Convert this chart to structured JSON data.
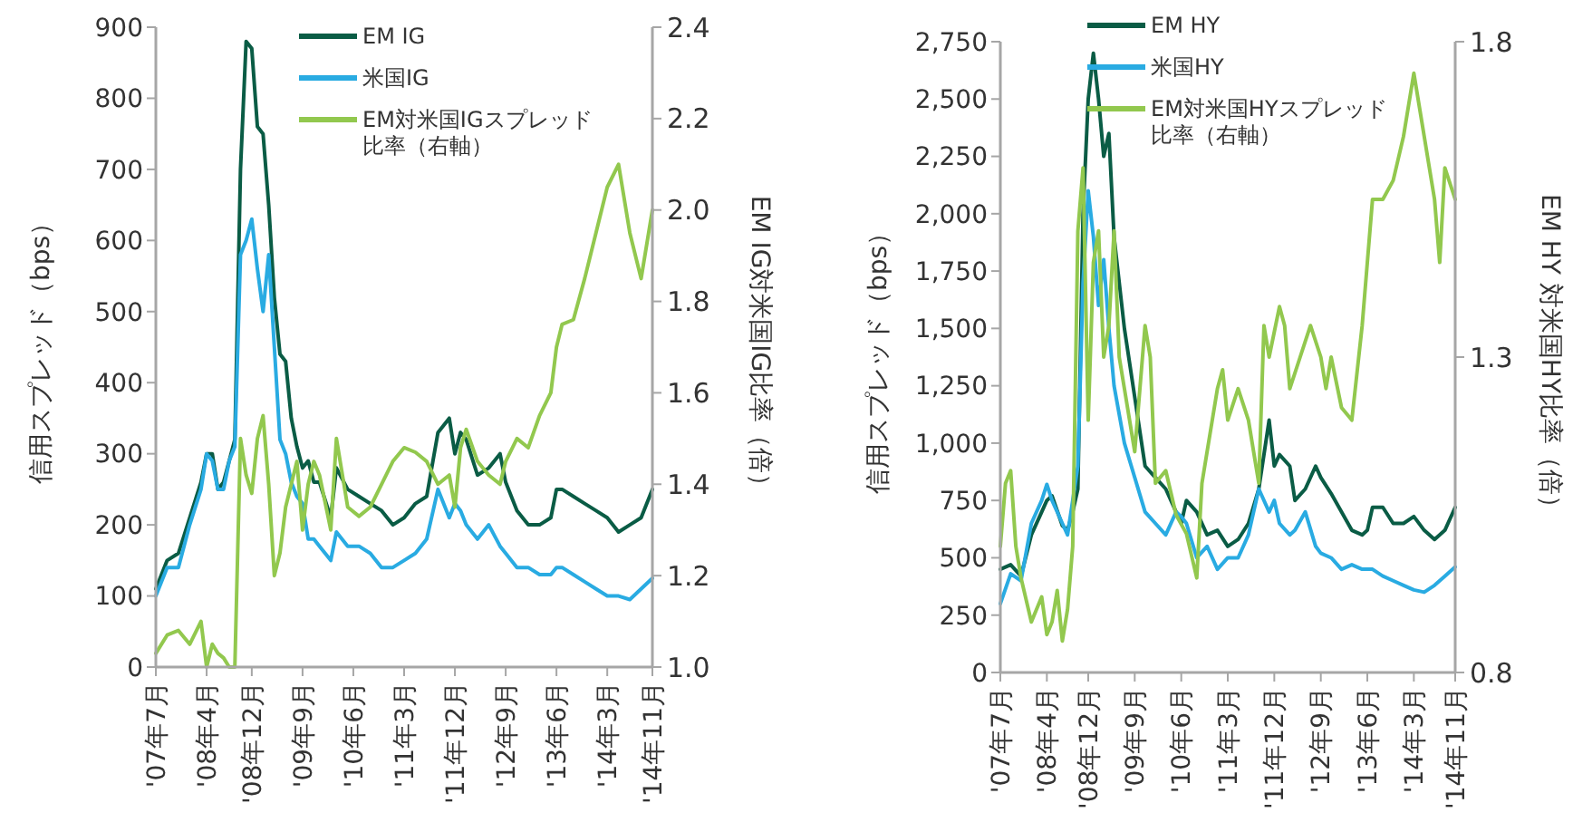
{
  "chart_data": [
    {
      "type": "line",
      "xlim": [
        "2007-07",
        "2014-11"
      ],
      "xticks": [
        {
          "value": "2007-07",
          "label": "'07年7月"
        },
        {
          "value": "2008-04",
          "label": "'08年4月"
        },
        {
          "value": "2008-12",
          "label": "'08年12月"
        },
        {
          "value": "2009-09",
          "label": "'09年9月"
        },
        {
          "value": "2010-06",
          "label": "'10年6月"
        },
        {
          "value": "2011-03",
          "label": "'11年3月"
        },
        {
          "value": "2011-12",
          "label": "'11年12月"
        },
        {
          "value": "2012-09",
          "label": "'12年9月"
        },
        {
          "value": "2013-06",
          "label": "'13年6月"
        },
        {
          "value": "2014-03",
          "label": "'14年3月"
        },
        {
          "value": "2014-11",
          "label": "'14年11月"
        }
      ],
      "x": [
        "2007-07",
        "2007-09",
        "2007-11",
        "2008-01",
        "2008-03",
        "2008-04",
        "2008-05",
        "2008-06",
        "2008-07",
        "2008-08",
        "2008-09",
        "2008-10",
        "2008-11",
        "2008-12",
        "2009-01",
        "2009-02",
        "2009-03",
        "2009-04",
        "2009-05",
        "2009-06",
        "2009-07",
        "2009-08",
        "2009-09",
        "2009-10",
        "2009-11",
        "2009-12",
        "2010-02",
        "2010-03",
        "2010-05",
        "2010-07",
        "2010-09",
        "2010-11",
        "2011-01",
        "2011-03",
        "2011-05",
        "2011-07",
        "2011-09",
        "2011-11",
        "2011-12",
        "2012-01",
        "2012-02",
        "2012-04",
        "2012-06",
        "2012-08",
        "2012-09",
        "2012-11",
        "2013-01",
        "2013-03",
        "2013-05",
        "2013-06",
        "2013-07",
        "2013-09",
        "2013-11",
        "2014-01",
        "2014-03",
        "2014-05",
        "2014-07",
        "2014-09",
        "2014-11"
      ],
      "ylabel": "信用スプレッド（bps）",
      "y2label": "EM IG対米国IG比率（倍）",
      "ylim": [
        0,
        900
      ],
      "yticks": [
        0,
        100,
        200,
        300,
        400,
        500,
        600,
        700,
        800,
        900
      ],
      "y2lim": [
        1,
        2.4
      ],
      "y2ticks": [
        {
          "value": 1,
          "label": "1.0"
        },
        1.2,
        1.4,
        1.6,
        1.8,
        {
          "value": 2,
          "label": "2.0"
        },
        2.2,
        2.4
      ],
      "legend": "top",
      "grid": false,
      "series": [
        {
          "name": "EM IG",
          "color": "#0a5c45",
          "values": [
            110,
            150,
            160,
            210,
            260,
            300,
            300,
            250,
            260,
            290,
            320,
            700,
            880,
            870,
            760,
            750,
            650,
            520,
            440,
            430,
            350,
            310,
            280,
            290,
            260,
            260,
            210,
            280,
            250,
            240,
            230,
            220,
            200,
            210,
            230,
            240,
            330,
            350,
            300,
            330,
            320,
            270,
            280,
            300,
            260,
            220,
            200,
            200,
            210,
            250,
            250,
            240,
            230,
            220,
            210,
            190,
            200,
            210,
            250
          ]
        },
        {
          "name": "米国IG",
          "color": "#29abe2",
          "values": [
            100,
            140,
            140,
            200,
            250,
            300,
            290,
            250,
            250,
            290,
            310,
            580,
            600,
            630,
            560,
            500,
            580,
            450,
            320,
            300,
            260,
            240,
            230,
            180,
            180,
            170,
            150,
            190,
            170,
            170,
            160,
            140,
            140,
            150,
            160,
            180,
            250,
            210,
            230,
            220,
            200,
            180,
            200,
            170,
            160,
            140,
            140,
            130,
            130,
            140,
            140,
            130,
            120,
            110,
            100,
            100,
            95,
            110,
            125
          ]
        },
        {
          "name": "EM対米国IGスプレッド比率（右軸）",
          "color": "#92c84e",
          "axis": "y2",
          "values": [
            1.03,
            1.07,
            1.08,
            1.05,
            1.1,
            1.0,
            1.05,
            1.03,
            1.02,
            1.0,
            1.0,
            1.5,
            1.42,
            1.38,
            1.5,
            1.55,
            1.4,
            1.2,
            1.25,
            1.35,
            1.4,
            1.45,
            1.3,
            1.4,
            1.45,
            1.42,
            1.3,
            1.5,
            1.35,
            1.33,
            1.35,
            1.4,
            1.45,
            1.48,
            1.47,
            1.45,
            1.4,
            1.42,
            1.35,
            1.48,
            1.52,
            1.45,
            1.42,
            1.4,
            1.45,
            1.5,
            1.48,
            1.55,
            1.6,
            1.7,
            1.75,
            1.76,
            1.85,
            1.95,
            2.05,
            2.1,
            1.95,
            1.85,
            2.0
          ]
        }
      ]
    },
    {
      "type": "line",
      "xlim": [
        "2007-07",
        "2014-11"
      ],
      "xticks": [
        {
          "value": "2007-07",
          "label": "'07年7月"
        },
        {
          "value": "2008-04",
          "label": "'08年4月"
        },
        {
          "value": "2008-12",
          "label": "'08年12月"
        },
        {
          "value": "2009-09",
          "label": "'09年9月"
        },
        {
          "value": "2010-06",
          "label": "'10年6月"
        },
        {
          "value": "2011-03",
          "label": "'11年3月"
        },
        {
          "value": "2011-12",
          "label": "'11年12月"
        },
        {
          "value": "2012-09",
          "label": "'12年9月"
        },
        {
          "value": "2013-06",
          "label": "'13年6月"
        },
        {
          "value": "2014-03",
          "label": "'14年3月"
        },
        {
          "value": "2014-11",
          "label": "'14年11月"
        }
      ],
      "x": [
        "2007-07",
        "2007-09",
        "2007-11",
        "2008-01",
        "2008-03",
        "2008-04",
        "2008-05",
        "2008-07",
        "2008-08",
        "2008-09",
        "2008-10",
        "2008-11",
        "2008-12",
        "2009-01",
        "2009-02",
        "2009-03",
        "2009-04",
        "2009-05",
        "2009-07",
        "2009-09",
        "2009-11",
        "2010-01",
        "2010-03",
        "2010-05",
        "2010-06",
        "2010-07",
        "2010-09",
        "2010-11",
        "2011-01",
        "2011-03",
        "2011-05",
        "2011-07",
        "2011-09",
        "2011-11",
        "2011-12",
        "2012-01",
        "2012-03",
        "2012-04",
        "2012-06",
        "2012-08",
        "2012-09",
        "2012-11",
        "2013-01",
        "2013-03",
        "2013-05",
        "2013-06",
        "2013-07",
        "2013-09",
        "2013-11",
        "2014-01",
        "2014-03",
        "2014-05",
        "2014-07",
        "2014-09",
        "2014-11"
      ],
      "ylabel": "信用スプレッド（bps）",
      "y2label": "EM HY 対米国HY比率（倍）",
      "ylim": [
        0,
        2750
      ],
      "yticks": [
        0,
        250,
        500,
        750,
        {
          "value": 1000,
          "label": "1,000"
        },
        {
          "value": 1250,
          "label": "1,250"
        },
        {
          "value": 1500,
          "label": "1,500"
        },
        {
          "value": 1750,
          "label": "1,750"
        },
        {
          "value": 2000,
          "label": "2,000"
        },
        {
          "value": 2250,
          "label": "2,250"
        },
        {
          "value": 2500,
          "label": "2,500"
        },
        {
          "value": 2750,
          "label": "2,750"
        }
      ],
      "y2lim": [
        0.8,
        1.8
      ],
      "y2ticks": [
        0.8,
        1.3,
        1.8
      ],
      "legend": "top",
      "grid": false,
      "series": [
        {
          "name": "EM HY",
          "color": "#0a5c45",
          "values": [
            450,
            470,
            420,
            600,
            700,
            750,
            770,
            640,
            620,
            700,
            800,
            2000,
            2500,
            2700,
            2500,
            2250,
            2350,
            1900,
            1500,
            1200,
            900,
            850,
            800,
            700,
            650,
            750,
            700,
            600,
            620,
            550,
            580,
            650,
            800,
            1100,
            900,
            950,
            900,
            750,
            800,
            900,
            850,
            780,
            700,
            620,
            600,
            620,
            720,
            720,
            650,
            650,
            680,
            620,
            580,
            620,
            720
          ]
        },
        {
          "name": "米国HY",
          "color": "#29abe2",
          "values": [
            300,
            430,
            400,
            650,
            750,
            820,
            750,
            650,
            600,
            750,
            900,
            1700,
            2100,
            1900,
            1600,
            1800,
            1500,
            1250,
            1000,
            850,
            700,
            650,
            600,
            700,
            680,
            650,
            500,
            550,
            450,
            500,
            500,
            600,
            800,
            700,
            750,
            650,
            600,
            620,
            700,
            550,
            520,
            500,
            450,
            470,
            450,
            450,
            450,
            420,
            400,
            380,
            360,
            350,
            380,
            420,
            460
          ]
        },
        {
          "name": "EM対米国HYスプレッド比率（右軸）",
          "color": "#92c84e",
          "axis": "y2",
          "x": [
            "2007-07",
            "2007-08",
            "2007-09",
            "2007-10",
            "2007-11",
            "2008-01",
            "2008-03",
            "2008-04",
            "2008-05",
            "2008-06",
            "2008-07",
            "2008-08",
            "2008-09",
            "2008-10",
            "2008-11",
            "2008-12",
            "2009-01",
            "2009-02",
            "2009-03",
            "2009-04",
            "2009-05",
            "2009-06",
            "2009-07",
            "2009-09",
            "2009-11",
            "2009-12",
            "2010-01",
            "2010-03",
            "2010-05",
            "2010-07",
            "2010-09",
            "2010-10",
            "2010-11",
            "2011-01",
            "2011-02",
            "2011-03",
            "2011-05",
            "2011-07",
            "2011-09",
            "2011-10",
            "2011-11",
            "2012-01",
            "2012-02",
            "2012-03",
            "2012-05",
            "2012-07",
            "2012-09",
            "2012-10",
            "2012-11",
            "2013-01",
            "2013-03",
            "2013-05",
            "2013-06",
            "2013-07",
            "2013-09",
            "2013-11",
            "2014-01",
            "2014-03",
            "2014-04",
            "2014-05",
            "2014-07",
            "2014-08",
            "2014-09",
            "2014-11"
          ],
          "values": [
            1.0,
            1.1,
            1.12,
            1.0,
            0.95,
            0.88,
            0.92,
            0.86,
            0.88,
            0.93,
            0.85,
            0.9,
            1.0,
            1.5,
            1.6,
            1.2,
            1.45,
            1.5,
            1.3,
            1.35,
            1.5,
            1.3,
            1.25,
            1.15,
            1.35,
            1.3,
            1.1,
            1.12,
            1.05,
            1.02,
            0.95,
            1.1,
            1.15,
            1.25,
            1.28,
            1.2,
            1.25,
            1.2,
            1.1,
            1.35,
            1.3,
            1.38,
            1.35,
            1.25,
            1.3,
            1.35,
            1.3,
            1.25,
            1.3,
            1.22,
            1.2,
            1.35,
            1.45,
            1.55,
            1.55,
            1.58,
            1.65,
            1.75,
            1.7,
            1.65,
            1.55,
            1.45,
            1.6,
            1.55
          ]
        }
      ]
    }
  ]
}
